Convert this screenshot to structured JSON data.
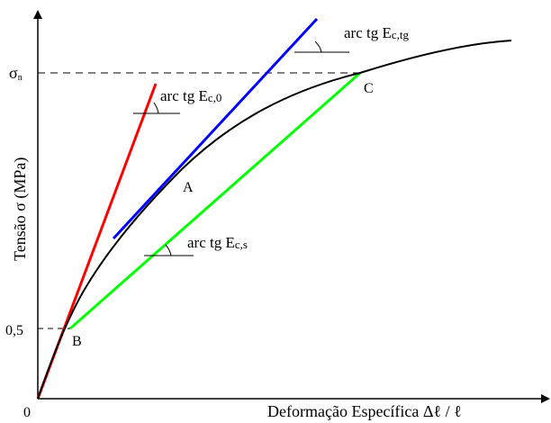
{
  "axes": {
    "origin_label": "0",
    "y_tick_label": "0,5",
    "y_top_tick_symbol": "σ",
    "y_top_tick_subscript": "n",
    "y_label": "Tensão σ  (MPa)",
    "x_label": "Deformação Específica  Δℓ / ℓ"
  },
  "points": {
    "A": "A",
    "B": "B",
    "C": "C"
  },
  "annotations": {
    "initial_prefix": "arc tg E",
    "initial_subscript": "c,0",
    "tangent_prefix": "arc tg E",
    "tangent_subscript": "c,tg",
    "secant_prefix": "arc tg E",
    "secant_subscript": "c,s"
  },
  "colors": {
    "curve": "#000000",
    "initial_tangent": "#ff0000",
    "tangent_at_A": "#0000ff",
    "secant": "#00ff00"
  }
}
